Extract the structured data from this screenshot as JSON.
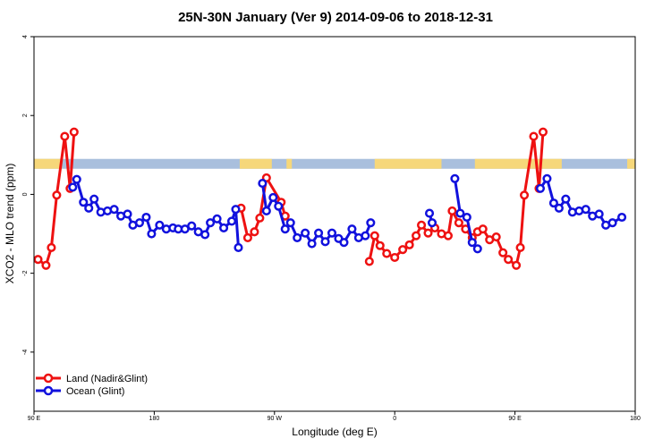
{
  "chart_data": {
    "type": "line",
    "title": "25N-30N January (Ver 9)   2014-09-06 to 2018-12-31",
    "xlabel": "Longitude (deg E)",
    "ylabel": "XCO2 - MLO trend (ppm)",
    "xlim": [
      90,
      540
    ],
    "ylim": [
      -5.5,
      4
    ],
    "x_ticks": [
      {
        "value": 90,
        "label": "90 E"
      },
      {
        "value": 180,
        "label": "180"
      },
      {
        "value": 270,
        "label": "90 W"
      },
      {
        "value": 360,
        "label": "0"
      },
      {
        "value": 450,
        "label": "90 E"
      },
      {
        "value": 540,
        "label": "180"
      }
    ],
    "y_ticks": [
      {
        "value": 4,
        "label": "4"
      },
      {
        "value": 2,
        "label": "2"
      },
      {
        "value": 0,
        "label": "0"
      },
      {
        "value": -2,
        "label": "-2"
      },
      {
        "value": -4,
        "label": "-4"
      }
    ],
    "grid": false,
    "legend_position": "bottom-left",
    "land_ocean_band": {
      "y_range": [
        0.65,
        0.9
      ],
      "ocean_color": "#a9bfdd",
      "land_color": "#f6d77a",
      "land_x_ranges": [
        [
          90,
          111
        ],
        [
          244,
          268
        ],
        [
          279,
          283
        ],
        [
          345,
          395
        ],
        [
          420,
          485
        ],
        [
          534,
          540
        ]
      ]
    },
    "series": [
      {
        "name": "Land (Nadir&Glint)",
        "color": "#ee1111",
        "segments": [
          [
            [
              93,
              -1.65
            ],
            [
              99,
              -1.8
            ],
            [
              103,
              -1.35
            ],
            [
              107,
              -0.02
            ],
            [
              113,
              1.47
            ],
            [
              117,
              0.15
            ],
            [
              120,
              1.58
            ]
          ],
          [
            [
              245,
              -0.35
            ],
            [
              250,
              -1.1
            ],
            [
              255,
              -0.95
            ],
            [
              259,
              -0.6
            ],
            [
              264,
              0.42
            ],
            [
              275,
              -0.2
            ],
            [
              278,
              -0.55
            ]
          ],
          [
            [
              341,
              -1.7
            ],
            [
              345,
              -1.05
            ],
            [
              349,
              -1.3
            ],
            [
              354,
              -1.5
            ],
            [
              360,
              -1.6
            ],
            [
              366,
              -1.4
            ],
            [
              371,
              -1.28
            ],
            [
              376,
              -1.05
            ],
            [
              380,
              -0.78
            ],
            [
              385,
              -0.98
            ],
            [
              390,
              -0.85
            ],
            [
              395,
              -1.0
            ],
            [
              400,
              -1.05
            ],
            [
              403,
              -0.42
            ],
            [
              408,
              -0.72
            ],
            [
              413,
              -0.88
            ],
            [
              418,
              -1.1
            ],
            [
              422,
              -0.95
            ],
            [
              426,
              -0.88
            ],
            [
              431,
              -1.15
            ],
            [
              436,
              -1.08
            ],
            [
              441,
              -1.48
            ],
            [
              445,
              -1.65
            ],
            [
              451,
              -1.8
            ],
            [
              454,
              -1.35
            ],
            [
              457,
              -0.02
            ],
            [
              464,
              1.47
            ],
            [
              468,
              0.15
            ],
            [
              471,
              1.58
            ]
          ]
        ]
      },
      {
        "name": "Ocean (Glint)",
        "color": "#1111dd",
        "segments": [
          [
            [
              119,
              0.18
            ],
            [
              122,
              0.38
            ],
            [
              127,
              -0.2
            ],
            [
              131,
              -0.35
            ],
            [
              135,
              -0.12
            ],
            [
              140,
              -0.45
            ],
            [
              145,
              -0.42
            ],
            [
              150,
              -0.38
            ],
            [
              155,
              -0.55
            ],
            [
              160,
              -0.5
            ],
            [
              164,
              -0.78
            ],
            [
              169,
              -0.72
            ],
            [
              174,
              -0.58
            ],
            [
              178,
              -1.0
            ],
            [
              184,
              -0.78
            ],
            [
              189,
              -0.88
            ],
            [
              194,
              -0.85
            ],
            [
              198,
              -0.88
            ],
            [
              203,
              -0.88
            ],
            [
              208,
              -0.8
            ],
            [
              213,
              -0.95
            ],
            [
              218,
              -1.02
            ],
            [
              222,
              -0.72
            ],
            [
              227,
              -0.62
            ],
            [
              232,
              -0.85
            ],
            [
              238,
              -0.68
            ],
            [
              241,
              -0.38
            ],
            [
              243,
              -1.35
            ]
          ],
          [
            [
              261,
              0.28
            ],
            [
              264,
              -0.42
            ],
            [
              269,
              -0.08
            ],
            [
              273,
              -0.3
            ],
            [
              278,
              -0.88
            ],
            [
              282,
              -0.72
            ],
            [
              287,
              -1.1
            ],
            [
              293,
              -0.98
            ],
            [
              298,
              -1.25
            ],
            [
              303,
              -0.98
            ],
            [
              308,
              -1.2
            ],
            [
              313,
              -0.98
            ],
            [
              318,
              -1.12
            ],
            [
              322,
              -1.22
            ],
            [
              328,
              -0.88
            ],
            [
              333,
              -1.1
            ],
            [
              338,
              -1.05
            ],
            [
              342,
              -0.72
            ]
          ],
          [
            [
              386,
              -0.48
            ],
            [
              388,
              -0.72
            ]
          ],
          [
            [
              405,
              0.4
            ],
            [
              409,
              -0.48
            ],
            [
              414,
              -0.58
            ],
            [
              418,
              -1.22
            ],
            [
              422,
              -1.38
            ]
          ],
          [
            [
              469,
              0.15
            ],
            [
              474,
              0.4
            ],
            [
              479,
              -0.22
            ],
            [
              483,
              -0.35
            ],
            [
              488,
              -0.12
            ],
            [
              493,
              -0.45
            ],
            [
              498,
              -0.42
            ],
            [
              503,
              -0.38
            ],
            [
              508,
              -0.55
            ],
            [
              513,
              -0.5
            ],
            [
              518,
              -0.78
            ],
            [
              523,
              -0.72
            ],
            [
              530,
              -0.58
            ]
          ]
        ]
      }
    ]
  }
}
